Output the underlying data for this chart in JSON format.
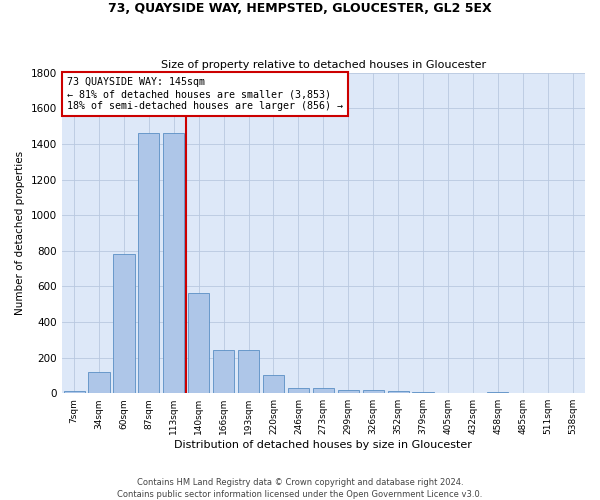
{
  "title1": "73, QUAYSIDE WAY, HEMPSTED, GLOUCESTER, GL2 5EX",
  "title2": "Size of property relative to detached houses in Gloucester",
  "xlabel": "Distribution of detached houses by size in Gloucester",
  "ylabel": "Number of detached properties",
  "bar_labels": [
    "7sqm",
    "34sqm",
    "60sqm",
    "87sqm",
    "113sqm",
    "140sqm",
    "166sqm",
    "193sqm",
    "220sqm",
    "246sqm",
    "273sqm",
    "299sqm",
    "326sqm",
    "352sqm",
    "379sqm",
    "405sqm",
    "432sqm",
    "458sqm",
    "485sqm",
    "511sqm",
    "538sqm"
  ],
  "bar_values": [
    10,
    120,
    780,
    1460,
    1460,
    560,
    245,
    245,
    100,
    30,
    30,
    20,
    20,
    15,
    5,
    0,
    0,
    5,
    0,
    0,
    0
  ],
  "bar_color": "#aec6e8",
  "bar_edge_color": "#5a8fc4",
  "background_color": "#dde8f8",
  "grid_color": "#b8c8e0",
  "property_line_x": 4.5,
  "annotation_text_line1": "73 QUAYSIDE WAY: 145sqm",
  "annotation_text_line2": "← 81% of detached houses are smaller (3,853)",
  "annotation_text_line3": "18% of semi-detached houses are larger (856) →",
  "annotation_box_color": "#ffffff",
  "annotation_box_edge": "#cc0000",
  "red_line_color": "#cc0000",
  "footer1": "Contains HM Land Registry data © Crown copyright and database right 2024.",
  "footer2": "Contains public sector information licensed under the Open Government Licence v3.0.",
  "ylim": [
    0,
    1800
  ],
  "yticks": [
    0,
    200,
    400,
    600,
    800,
    1000,
    1200,
    1400,
    1600,
    1800
  ]
}
